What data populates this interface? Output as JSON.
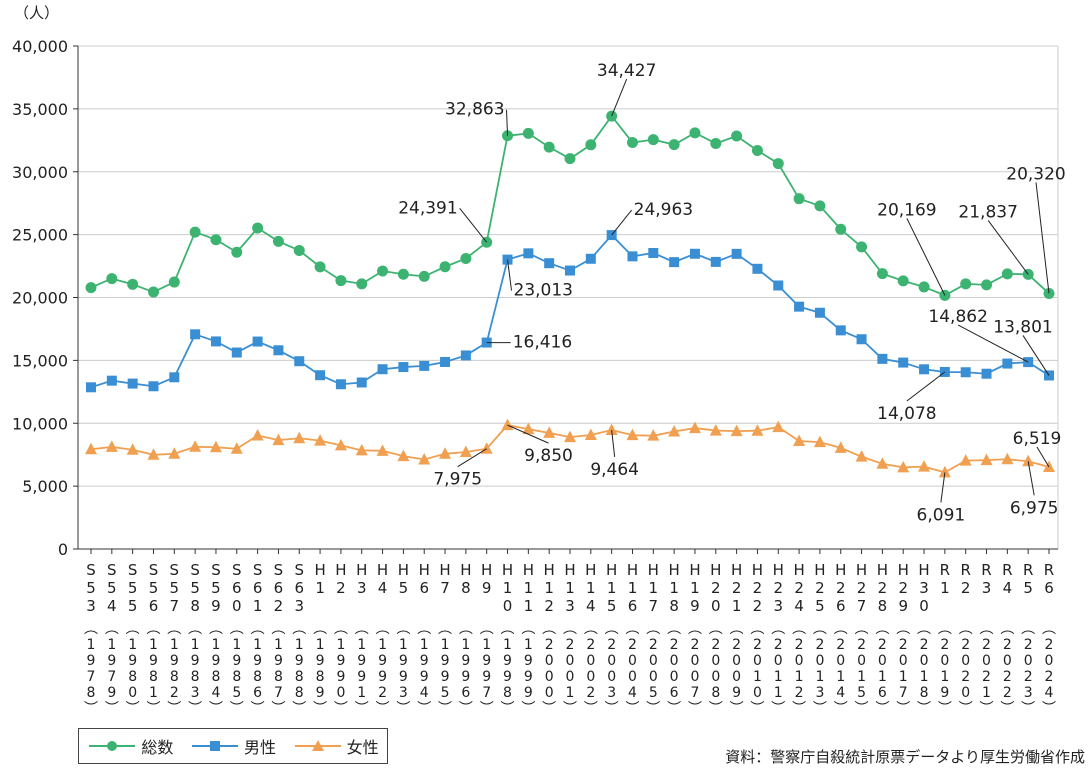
{
  "unit_label": "（人）",
  "source": "資料：警察庁自殺統計原票データより厚生労働省作成",
  "colors": {
    "total": "#3cb371",
    "male": "#3a8fd4",
    "female": "#f0a050",
    "axis": "#333333",
    "grid": "#cccccc"
  },
  "chart_data": {
    "type": "line",
    "title": "",
    "xlabel": "",
    "ylabel": "（人）",
    "ylim": [
      0,
      40000
    ],
    "yticks": [
      0,
      5000,
      10000,
      15000,
      20000,
      25000,
      30000,
      35000,
      40000
    ],
    "ytick_labels": [
      "0",
      "5,000",
      "10,000",
      "15,000",
      "20,000",
      "25,000",
      "30,000",
      "35,000",
      "40,000"
    ],
    "categories_era": [
      "S53",
      "S54",
      "S55",
      "S56",
      "S57",
      "S58",
      "S59",
      "S60",
      "S61",
      "S62",
      "S63",
      "H1",
      "H2",
      "H3",
      "H4",
      "H5",
      "H6",
      "H7",
      "H8",
      "H9",
      "H10",
      "H11",
      "H12",
      "H13",
      "H14",
      "H15",
      "H16",
      "H17",
      "H18",
      "H19",
      "H20",
      "H21",
      "H22",
      "H23",
      "H24",
      "H25",
      "H26",
      "H27",
      "H28",
      "H29",
      "H30",
      "R1",
      "R2",
      "R3",
      "R4",
      "R5",
      "R6"
    ],
    "categories_year": [
      "1978",
      "1979",
      "1980",
      "1981",
      "1982",
      "1983",
      "1984",
      "1985",
      "1986",
      "1987",
      "1988",
      "1989",
      "1990",
      "1991",
      "1992",
      "1993",
      "1994",
      "1995",
      "1996",
      "1997",
      "1998",
      "1999",
      "2000",
      "2001",
      "2002",
      "2003",
      "2004",
      "2005",
      "2006",
      "2007",
      "2008",
      "2009",
      "2010",
      "2011",
      "2012",
      "2013",
      "2014",
      "2015",
      "2016",
      "2017",
      "2018",
      "2019",
      "2020",
      "2021",
      "2022",
      "2023",
      "2024"
    ],
    "series": [
      {
        "name": "総数",
        "key": "total",
        "marker": "circle",
        "values": [
          20788,
          21503,
          21048,
          20434,
          21228,
          25202,
          24596,
          23599,
          25524,
          24460,
          23742,
          22436,
          21346,
          21084,
          22104,
          21851,
          21679,
          22445,
          23104,
          24391,
          32863,
          33048,
          31957,
          31042,
          32143,
          34427,
          32325,
          32552,
          32155,
          33093,
          32249,
          32845,
          31690,
          30651,
          27858,
          27283,
          25427,
          24025,
          21897,
          21321,
          20840,
          20169,
          21081,
          21007,
          21881,
          21837,
          20320
        ]
      },
      {
        "name": "男性",
        "key": "male",
        "marker": "square",
        "values": [
          12859,
          13386,
          13155,
          12942,
          13654,
          17073,
          16508,
          15624,
          16497,
          15802,
          14934,
          13818,
          13102,
          13242,
          14296,
          14468,
          14560,
          14874,
          15393,
          16416,
          23013,
          23512,
          22727,
          22144,
          23080,
          24963,
          23272,
          23540,
          22813,
          23478,
          22831,
          23472,
          22283,
          20955,
          19273,
          18787,
          17386,
          16681,
          15121,
          14826,
          14290,
          14078,
          14055,
          13939,
          14746,
          14862,
          13801
        ]
      },
      {
        "name": "女性",
        "key": "female",
        "marker": "triangle",
        "values": [
          7929,
          8117,
          7893,
          7492,
          7574,
          8129,
          8088,
          7975,
          9027,
          8658,
          8808,
          8618,
          8244,
          7842,
          7808,
          7383,
          7119,
          7571,
          7711,
          7975,
          9850,
          9536,
          9230,
          8898,
          9063,
          9464,
          9053,
          9012,
          9342,
          9615,
          9418,
          9373,
          9407,
          9696,
          8585,
          8496,
          8041,
          7344,
          6776,
          6495,
          6550,
          6091,
          7026,
          7068,
          7135,
          6975,
          6519
        ]
      }
    ],
    "annotations": [
      {
        "series": "total",
        "index": 19,
        "text": "24,391"
      },
      {
        "series": "total",
        "index": 20,
        "text": "32,863"
      },
      {
        "series": "total",
        "index": 25,
        "text": "34,427"
      },
      {
        "series": "total",
        "index": 41,
        "text": "20,169"
      },
      {
        "series": "total",
        "index": 45,
        "text": "21,837"
      },
      {
        "series": "total",
        "index": 46,
        "text": "20,320"
      },
      {
        "series": "male",
        "index": 19,
        "text": "16,416"
      },
      {
        "series": "male",
        "index": 20,
        "text": "23,013"
      },
      {
        "series": "male",
        "index": 25,
        "text": "24,963"
      },
      {
        "series": "male",
        "index": 41,
        "text": "14,078"
      },
      {
        "series": "male",
        "index": 45,
        "text": "14,862"
      },
      {
        "series": "male",
        "index": 46,
        "text": "13,801"
      },
      {
        "series": "female",
        "index": 19,
        "text": "7,975"
      },
      {
        "series": "female",
        "index": 20,
        "text": "9,850"
      },
      {
        "series": "female",
        "index": 25,
        "text": "9,464"
      },
      {
        "series": "female",
        "index": 41,
        "text": "6,091"
      },
      {
        "series": "female",
        "index": 45,
        "text": "6,975"
      },
      {
        "series": "female",
        "index": 46,
        "text": "6,519"
      }
    ],
    "legend": [
      {
        "key": "total",
        "label": "総数"
      },
      {
        "key": "male",
        "label": "男性"
      },
      {
        "key": "female",
        "label": "女性"
      }
    ],
    "legend_position": "bottom-left",
    "grid": true
  }
}
